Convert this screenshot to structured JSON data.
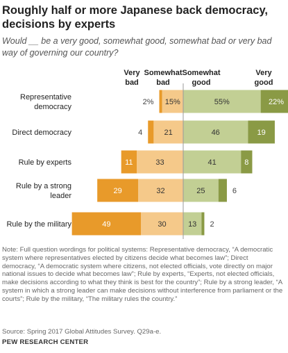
{
  "title": "Roughly half or more Japanese back democracy, decisions by experts",
  "subtitle": "Would __ be a very good, somewhat good, somewhat bad or very bad way of governing our country?",
  "note": "Note: Full question wordings for political systems: Representative democracy, “A democratic system where representatives elected by citizens decide what becomes law”; Direct democracy, “A democratic system where citizens, not elected officials, vote directly on major national issues to decide what becomes law”; Rule by experts, “Experts, not elected officials, make decisions according to what they think is best for the country”; Rule by a strong leader, “A system in which a strong leader can make decisions without interference from parliament or the courts”; Rule by the military, “The military rules the country.”",
  "source": "Source: Spring 2017 Global Attitudes Survey. Q29a-e.",
  "organization": "PEW RESEARCH CENTER",
  "chart_data": {
    "type": "bar",
    "stacking": "diverging",
    "categories": [
      [
        "Representative",
        "democracy"
      ],
      [
        "Direct democracy"
      ],
      [
        "Rule by experts"
      ],
      [
        "Rule by a strong",
        "leader"
      ],
      [
        "Rule by the military"
      ]
    ],
    "series": [
      {
        "name": "Very bad",
        "header": [
          "Very",
          "bad"
        ],
        "side": "negative",
        "color": "#e89a2a",
        "values": [
          2,
          4,
          11,
          29,
          49
        ],
        "labels": [
          "2%",
          "4",
          "11",
          "29",
          "49"
        ]
      },
      {
        "name": "Somewhat bad",
        "header": [
          "Somewhat",
          "bad"
        ],
        "side": "negative",
        "color": "#f5c98a",
        "values": [
          15,
          21,
          33,
          32,
          30
        ],
        "labels": [
          "15%",
          "21",
          "33",
          "32",
          "30"
        ]
      },
      {
        "name": "Somewhat good",
        "header": [
          "Somewhat",
          "good"
        ],
        "side": "positive",
        "color": "#c2cf94",
        "values": [
          55,
          46,
          41,
          25,
          13
        ],
        "labels": [
          "55%",
          "46",
          "41",
          "25",
          "13"
        ]
      },
      {
        "name": "Very good",
        "header": [
          "Very",
          "good"
        ],
        "side": "positive",
        "color": "#8a9a45",
        "values": [
          22,
          19,
          8,
          6,
          2
        ],
        "labels": [
          "22%",
          "19",
          "8",
          "6",
          "2"
        ]
      }
    ],
    "grid": false,
    "legend": "top"
  }
}
